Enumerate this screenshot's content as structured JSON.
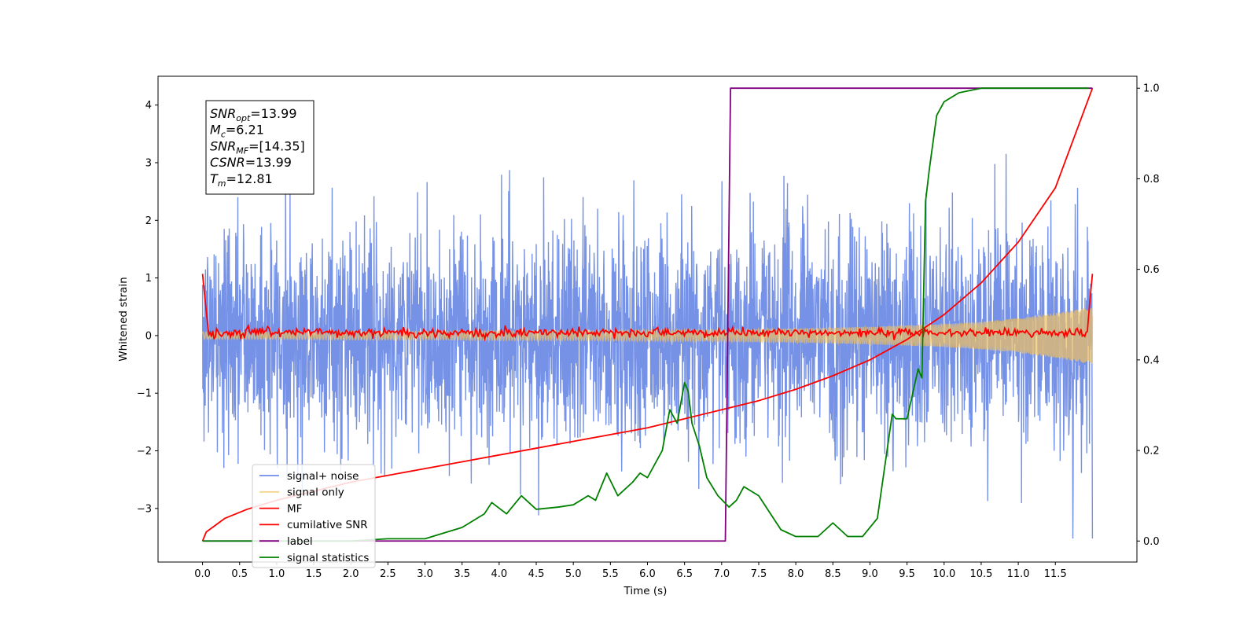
{
  "chart_data": {
    "type": "line",
    "xlabel": "Time (s)",
    "ylabel_left": "Whitened strain",
    "ylabel_right": "",
    "xlim": [
      -0.6,
      12.6
    ],
    "ylim_left": [
      -3.93,
      4.5
    ],
    "ylim_right": [
      -0.0464,
      1.0264
    ],
    "x_ticks": [
      0.0,
      0.5,
      1.0,
      1.5,
      2.0,
      2.5,
      3.0,
      3.5,
      4.0,
      4.5,
      5.0,
      5.5,
      6.0,
      6.5,
      7.0,
      7.5,
      8.0,
      8.5,
      9.0,
      9.5,
      10.0,
      10.5,
      11.0,
      11.5
    ],
    "x_tick_labels": [
      "0.0",
      "0.5",
      "1.0",
      "1.5",
      "2.0",
      "2.5",
      "3.0",
      "3.5",
      "4.0",
      "4.5",
      "5.0",
      "5.5",
      "6.0",
      "6.5",
      "7.0",
      "7.5",
      "8.0",
      "8.5",
      "9.0",
      "9.5",
      "10.0",
      "10.5",
      "11.0",
      "11.5"
    ],
    "y_left_ticks": [
      -3,
      -2,
      -1,
      0,
      1,
      2,
      3,
      4
    ],
    "y_left_tick_labels": [
      "−3",
      "−2",
      "−1",
      "0",
      "1",
      "2",
      "3",
      "4"
    ],
    "y_right_ticks": [
      0.0,
      0.2,
      0.4,
      0.6,
      0.8,
      1.0
    ],
    "y_right_tick_labels": [
      "0.0",
      "0.2",
      "0.4",
      "0.6",
      "0.8",
      "1.0"
    ],
    "grid": false,
    "legend_placement": "lower-left",
    "annotation": [
      {
        "main": "SNR",
        "sub": "opt",
        "rest": "=13.99"
      },
      {
        "main": "M",
        "sub": "c",
        "rest": "=6.21"
      },
      {
        "main": "SNR",
        "sub": "MF",
        "rest": "=[14.35]"
      },
      {
        "main": "CSNR",
        "sub": "",
        "rest": "=13.99"
      },
      {
        "main": "T",
        "sub": "m",
        "rest": "=12.81"
      }
    ],
    "series": [
      {
        "name": "signal+ noise",
        "axis": "left",
        "color": "#6f8ce6",
        "style": "noise",
        "x_range": [
          0.0,
          12.0
        ],
        "std": 0.95,
        "peak_max": 4.17,
        "peak_min": -3.52
      },
      {
        "name": "signal only",
        "axis": "left",
        "color": "#f0c060",
        "style": "chirp",
        "x": [
          0,
          1,
          2,
          3,
          4,
          5,
          6,
          7,
          8,
          9,
          10,
          10.5,
          11,
          11.5,
          12.0
        ],
        "envelope": [
          0.06,
          0.06,
          0.07,
          0.07,
          0.08,
          0.08,
          0.09,
          0.1,
          0.12,
          0.15,
          0.2,
          0.24,
          0.3,
          0.39,
          0.5
        ]
      },
      {
        "name": "MF",
        "axis": "right",
        "color": "#ff0000",
        "style": "mf",
        "x": [
          0.0,
          0.03,
          0.08,
          6.6,
          11.93,
          11.96,
          12.0
        ],
        "y": [
          0.59,
          0.54,
          0.46,
          0.46,
          0.46,
          0.52,
          0.59
        ]
      },
      {
        "name": "cumilative SNR",
        "axis": "right",
        "color": "#ff0000",
        "style": "line",
        "x": [
          0.0,
          0.05,
          0.3,
          0.6,
          1.0,
          1.5,
          2.0,
          2.5,
          3.0,
          3.5,
          4.0,
          4.5,
          5.0,
          5.5,
          6.0,
          6.5,
          7.0,
          7.5,
          8.0,
          8.5,
          9.0,
          9.5,
          10.0,
          10.5,
          11.0,
          11.5,
          12.0
        ],
        "y": [
          0.0,
          0.02,
          0.05,
          0.07,
          0.09,
          0.11,
          0.13,
          0.145,
          0.16,
          0.175,
          0.19,
          0.205,
          0.22,
          0.235,
          0.25,
          0.27,
          0.29,
          0.31,
          0.335,
          0.365,
          0.4,
          0.445,
          0.5,
          0.57,
          0.66,
          0.78,
          1.0
        ]
      },
      {
        "name": "label",
        "axis": "right",
        "color": "#800080",
        "style": "line",
        "x": [
          0.0,
          7.05,
          7.12,
          12.0
        ],
        "y": [
          0.0,
          0.0,
          1.0,
          1.0
        ]
      },
      {
        "name": "signal statistics",
        "axis": "right",
        "color": "#008000",
        "style": "line",
        "x": [
          0.0,
          1.0,
          2.0,
          2.5,
          3.0,
          3.5,
          3.8,
          3.9,
          4.1,
          4.2,
          4.3,
          4.5,
          4.8,
          5.0,
          5.2,
          5.3,
          5.45,
          5.6,
          5.8,
          5.9,
          6.0,
          6.2,
          6.3,
          6.4,
          6.5,
          6.55,
          6.6,
          6.7,
          6.8,
          6.95,
          7.1,
          7.2,
          7.3,
          7.5,
          7.7,
          7.8,
          8.0,
          8.3,
          8.5,
          8.7,
          8.9,
          9.1,
          9.3,
          9.35,
          9.5,
          9.65,
          9.7,
          9.75,
          9.8,
          9.9,
          10.0,
          10.2,
          10.5,
          11.0,
          11.5,
          11.95
        ],
        "y": [
          0.0,
          0.0,
          0.0,
          0.005,
          0.005,
          0.03,
          0.06,
          0.085,
          0.06,
          0.08,
          0.1,
          0.07,
          0.075,
          0.08,
          0.1,
          0.09,
          0.15,
          0.1,
          0.13,
          0.15,
          0.14,
          0.2,
          0.29,
          0.26,
          0.35,
          0.33,
          0.26,
          0.21,
          0.14,
          0.1,
          0.075,
          0.09,
          0.12,
          0.1,
          0.05,
          0.025,
          0.01,
          0.01,
          0.04,
          0.01,
          0.01,
          0.05,
          0.28,
          0.27,
          0.27,
          0.38,
          0.36,
          0.75,
          0.82,
          0.94,
          0.97,
          0.99,
          1.0,
          1.0,
          1.0,
          1.0
        ]
      }
    ]
  }
}
